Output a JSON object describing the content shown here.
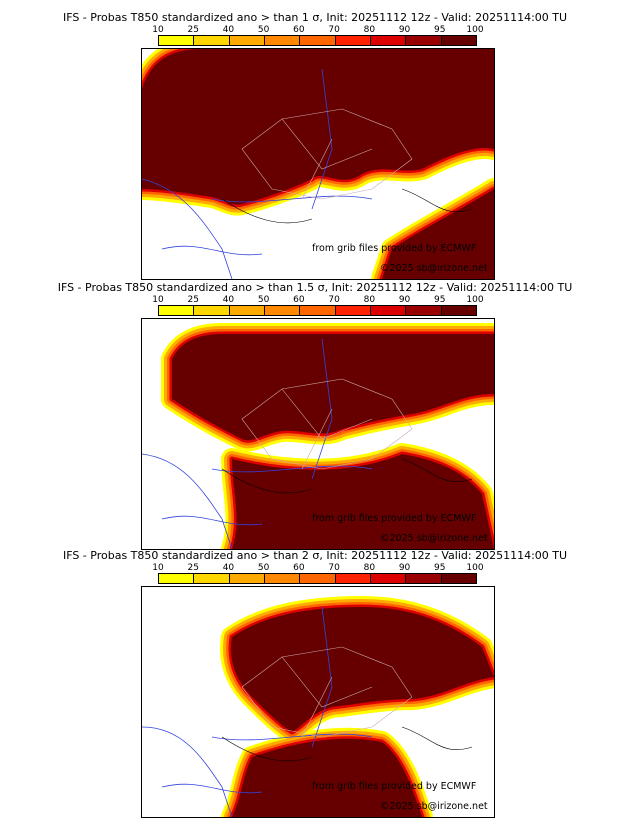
{
  "colorbar": {
    "ticks": [
      "10",
      "25",
      "40",
      "50",
      "60",
      "70",
      "80",
      "90",
      "95",
      "100"
    ],
    "colors": [
      "#ffff00",
      "#ffd700",
      "#ffaa00",
      "#ff8800",
      "#ff6600",
      "#ff2200",
      "#dd0000",
      "#990000",
      "#660000"
    ]
  },
  "panels": [
    {
      "title": "IFS - Probas T850  standardized ano > than 1 σ, Init: 20251112 12z - Valid: 20251114:00 TU",
      "threshold": "1 σ"
    },
    {
      "title": "IFS - Probas T850  standardized ano > than 1.5 σ, Init: 20251112 12z - Valid: 20251114:00 TU",
      "threshold": "1.5 σ"
    },
    {
      "title": "IFS - Probas T850  standardized ano > than 2 σ, Init: 20251112 12z - Valid: 20251114:00 TU",
      "threshold": "2 σ"
    }
  ],
  "credits": {
    "source": "from grib files provided by ECMWF",
    "copyright": "©2025 sb@irizone.net"
  }
}
